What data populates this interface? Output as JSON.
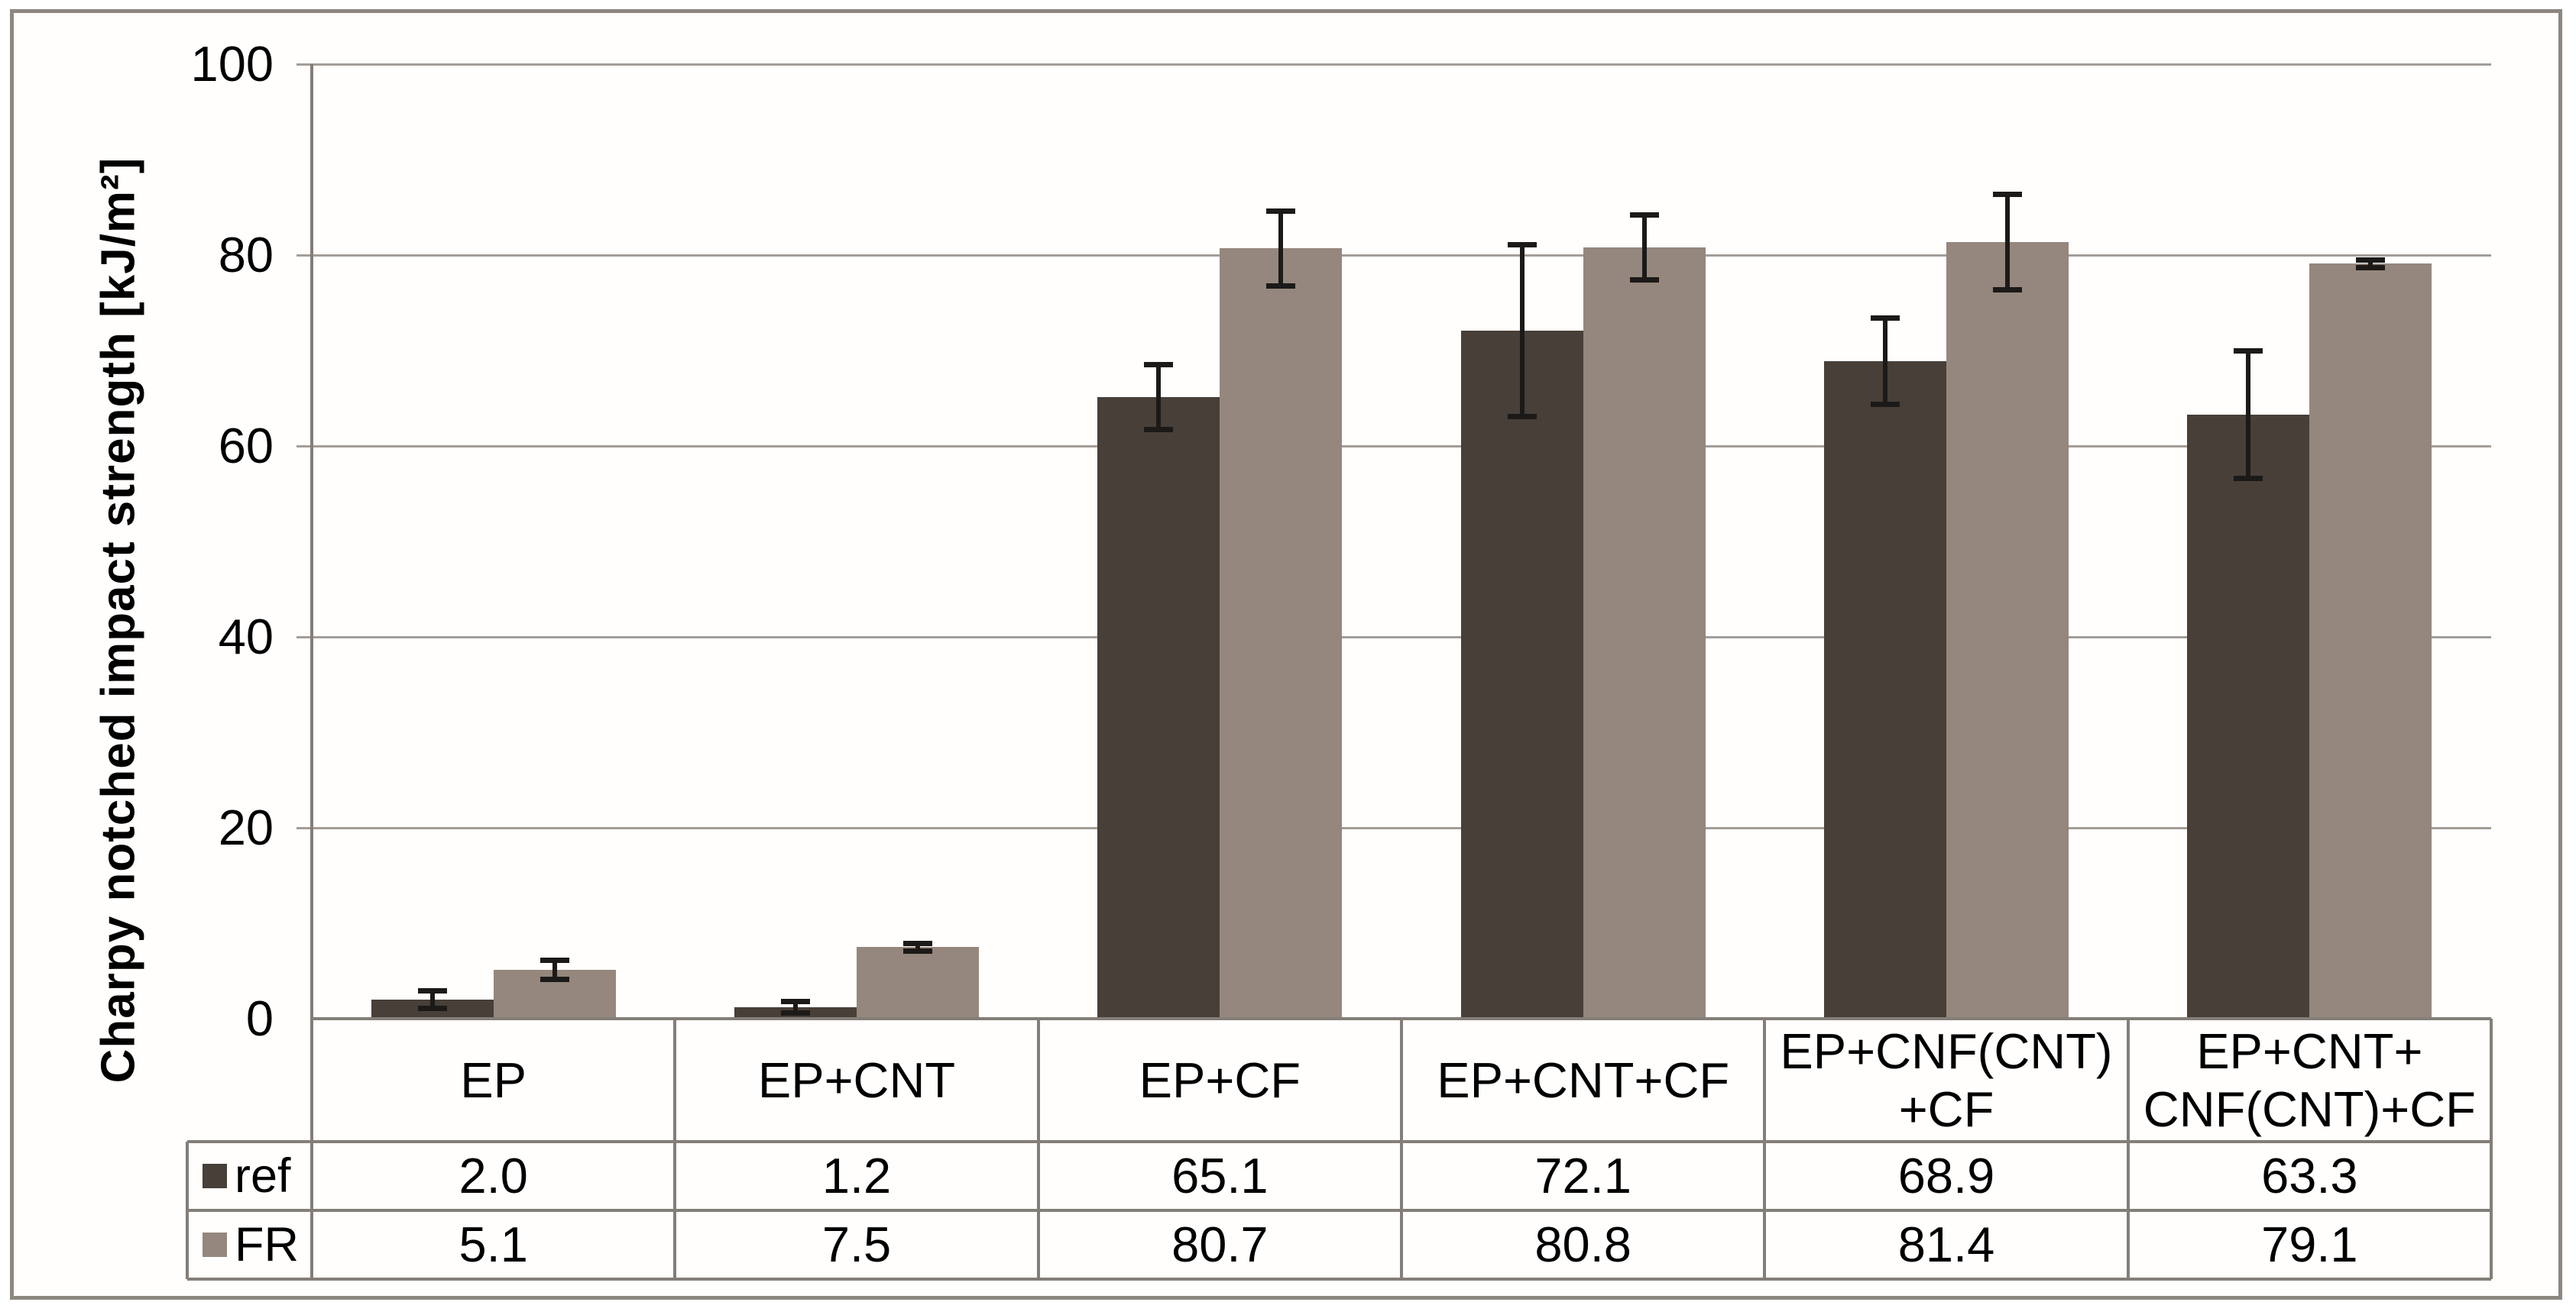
{
  "chart_data": {
    "type": "bar",
    "title": "",
    "ylabel": "Charpy notched impact strength [kJ/m²]",
    "xlabel": "",
    "ylim": [
      0,
      100
    ],
    "y_ticks": [
      0,
      20,
      40,
      60,
      80,
      100
    ],
    "grid": true,
    "legend_position": "table-left",
    "categories": [
      "EP",
      "EP+CNT",
      "EP+CF",
      "EP+CNT+CF",
      "EP+CNF(CNT)\n+CF",
      "EP+CNT+\nCNF(CNT)+CF"
    ],
    "series": [
      {
        "name": "ref",
        "color": "#473f38",
        "values": [
          2.0,
          1.2,
          65.1,
          72.1,
          68.9,
          63.3
        ],
        "errors": [
          0.9,
          0.6,
          3.4,
          9.0,
          4.5,
          6.7
        ]
      },
      {
        "name": "FR",
        "color": "#95877d",
        "values": [
          5.1,
          7.5,
          80.7,
          80.8,
          81.4,
          79.1
        ],
        "errors": [
          1.0,
          0.4,
          3.9,
          3.4,
          5.0,
          0.4
        ]
      }
    ],
    "colors": {
      "grid": "#a49d97",
      "axis": "#847e78",
      "frame": "#8d8781",
      "error_bar": "#1c1a18",
      "background": "#fffefd"
    }
  },
  "table": {
    "legend_rows": [
      {
        "label": "ref",
        "swatch": "#473f38"
      },
      {
        "label": "FR",
        "swatch": "#95877d"
      }
    ],
    "rows": [
      [
        "2.0",
        "1.2",
        "65.1",
        "72.1",
        "68.9",
        "63.3"
      ],
      [
        "5.1",
        "7.5",
        "80.7",
        "80.8",
        "81.4",
        "79.1"
      ]
    ]
  }
}
